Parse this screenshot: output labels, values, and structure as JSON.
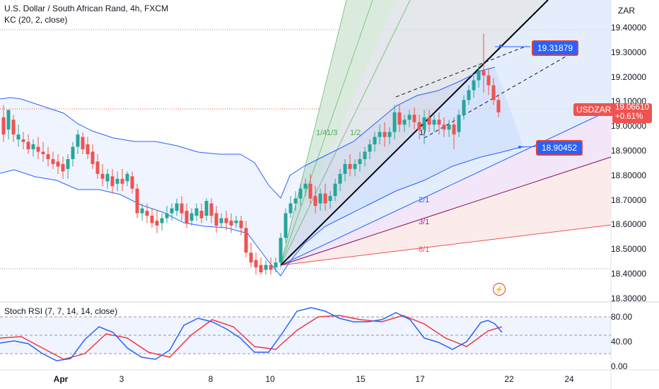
{
  "legend": {
    "symbol_line": "U.S. Dollar / South African Rand, 4h, FXCM",
    "indicator_line": "KC (20, 2, close)"
  },
  "currency": "ZAR",
  "price_axis": [
    "19.40000",
    "19.30000",
    "19.20000",
    "19.10000",
    "19.00000",
    "18.90000",
    "18.80000",
    "18.70000",
    "18.60000",
    "18.50000",
    "18.40000",
    "18.30000"
  ],
  "stoch_axis": [
    "80.00",
    "40.00",
    "0.00"
  ],
  "time_axis": [
    "Apr",
    "3",
    "8",
    "10",
    "15",
    "17",
    "22",
    "24"
  ],
  "symbol_tag": {
    "ticker": "USDZAR",
    "price": "19.06610",
    "change": "+0.61%"
  },
  "callouts": {
    "upper": "19.31879",
    "lower": "18.90452"
  },
  "fan_labels": [
    "1/4",
    "1/3",
    "1/2",
    "1/",
    "2/1",
    "3/1",
    "8/1"
  ],
  "stoch_label": "Stoch RSI (7, 7, 14, 14, close)",
  "colors": {
    "up": "#26a69a",
    "down": "#ef5350",
    "keltner": "#2962ff",
    "stoch_k": "#2962ff",
    "stoch_d": "#f23645"
  }
}
